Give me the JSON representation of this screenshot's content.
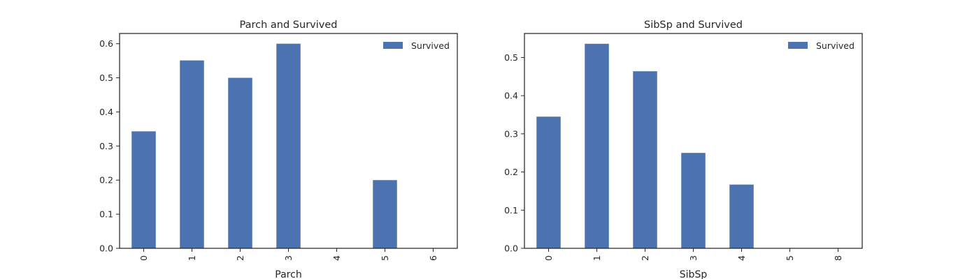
{
  "chart_data": [
    {
      "type": "bar",
      "title": "Parch and Survived",
      "xlabel": "Parch",
      "ylabel": "",
      "categories": [
        "0",
        "1",
        "2",
        "3",
        "4",
        "5",
        "6"
      ],
      "series": [
        {
          "name": "Survived",
          "values": [
            0.343,
            0.551,
            0.5,
            0.6,
            0.0,
            0.2,
            0.0
          ]
        }
      ],
      "ylim": [
        0,
        0.63
      ],
      "yticks": [
        "0.0",
        "0.1",
        "0.2",
        "0.3",
        "0.4",
        "0.5",
        "0.6"
      ],
      "legend": "top-right",
      "grid": false,
      "bar_color": "#4c72b0"
    },
    {
      "type": "bar",
      "title": "SibSp and Survived",
      "xlabel": "SibSp",
      "ylabel": "",
      "categories": [
        "0",
        "1",
        "2",
        "3",
        "4",
        "5",
        "8"
      ],
      "series": [
        {
          "name": "Survived",
          "values": [
            0.345,
            0.536,
            0.464,
            0.25,
            0.167,
            0.0,
            0.0
          ]
        }
      ],
      "ylim": [
        0,
        0.563
      ],
      "yticks": [
        "0.0",
        "0.1",
        "0.2",
        "0.3",
        "0.4",
        "0.5"
      ],
      "legend": "top-right",
      "grid": false,
      "bar_color": "#4c72b0"
    }
  ]
}
